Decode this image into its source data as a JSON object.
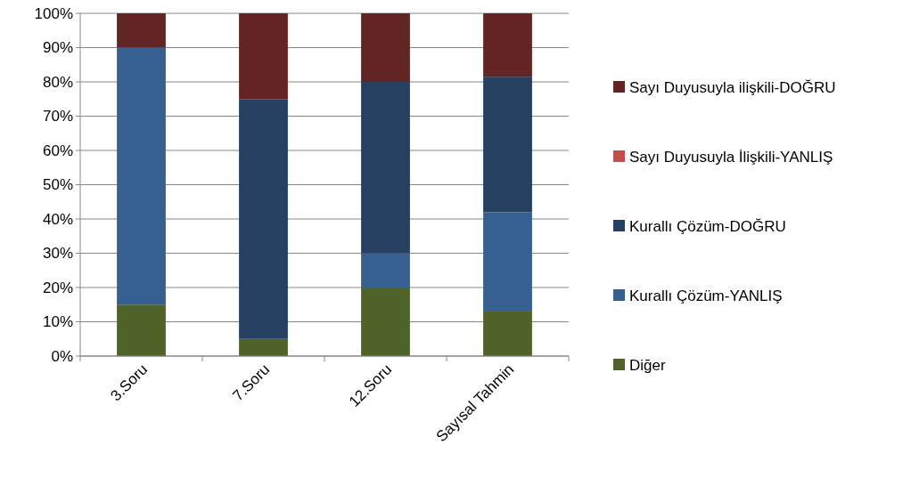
{
  "chart_data": {
    "type": "bar",
    "stacked": true,
    "categories": [
      "3.Soru",
      "7.Soru",
      "12.Soru",
      "Sayısal Tahmin"
    ],
    "series": [
      {
        "name": "Diğer",
        "color": "#4f6228",
        "values": [
          15,
          5,
          20,
          13
        ]
      },
      {
        "name": "Kurallı Çözüm-YANLIŞ",
        "color": "#376092",
        "values": [
          75,
          0,
          10,
          29
        ]
      },
      {
        "name": "Kurallı Çözüm-DOĞRU",
        "color": "#254061",
        "values": [
          0,
          70,
          50,
          39.5
        ]
      },
      {
        "name": "Sayı Duyusuyla İlişkili-YANLIŞ",
        "color": "#c0504d",
        "values": [
          0,
          0,
          0,
          0
        ]
      },
      {
        "name": "Sayı Duyusuyla ilişkili-DOĞRU",
        "color": "#632523",
        "values": [
          10,
          25,
          20,
          18.5
        ]
      }
    ],
    "ylim": [
      0,
      100
    ],
    "yticks": [
      {
        "value": 0,
        "label": "0%"
      },
      {
        "value": 10,
        "label": "10%"
      },
      {
        "value": 20,
        "label": "20%"
      },
      {
        "value": 30,
        "label": "30%"
      },
      {
        "value": 40,
        "label": "40%"
      },
      {
        "value": 50,
        "label": "50%"
      },
      {
        "value": 60,
        "label": "60%"
      },
      {
        "value": 70,
        "label": "70%"
      },
      {
        "value": 80,
        "label": "80%"
      },
      {
        "value": 90,
        "label": "90%"
      },
      {
        "value": 100,
        "label": "100%"
      }
    ],
    "grid": "y",
    "legend": "right"
  }
}
